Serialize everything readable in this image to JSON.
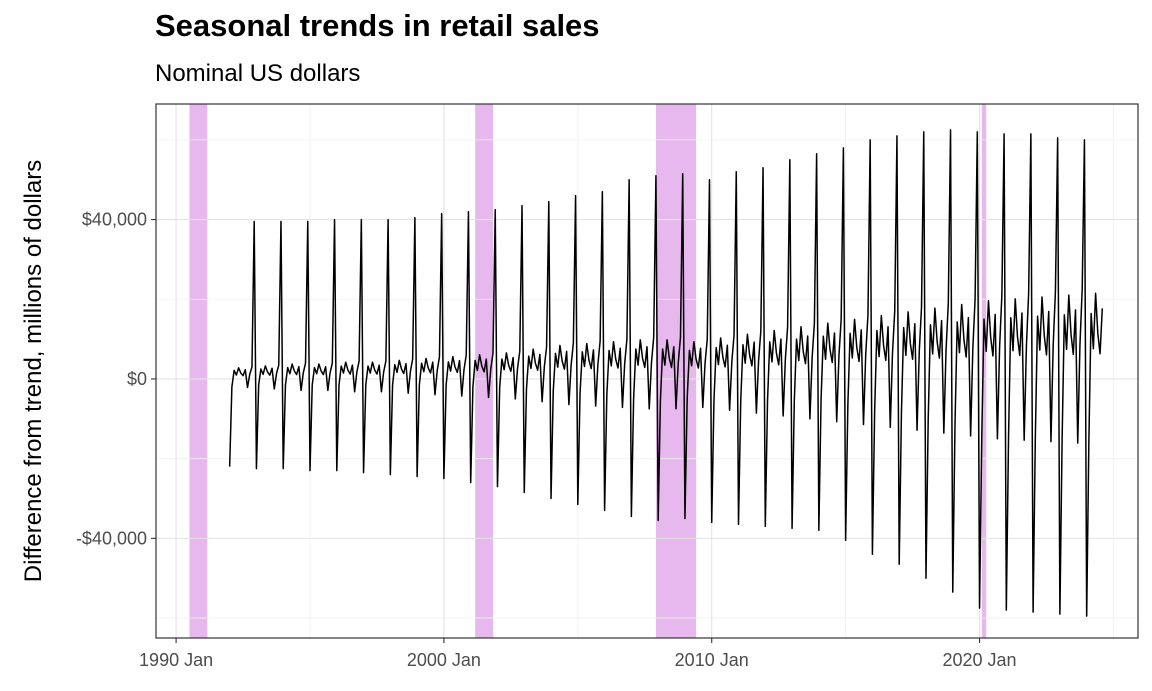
{
  "chart_data": {
    "type": "line",
    "title": "Seasonal trends in retail sales",
    "subtitle": "Nominal US dollars",
    "xlabel": "",
    "ylabel": "Difference from trend, millions of dollars",
    "x_ticks": [
      "1990 Jan",
      "2000 Jan",
      "2010 Jan",
      "2020 Jan"
    ],
    "y_ticks": [
      "$40,000",
      "$0",
      "-$40,000"
    ],
    "x_range": [
      "1989-04",
      "2025-12"
    ],
    "y_range": [
      -65000,
      69000
    ],
    "grid": true,
    "line_color": "#000000",
    "shade_color": "#e6b8ee",
    "recessions": [
      {
        "start": "1990-07",
        "end": "1991-03"
      },
      {
        "start": "2001-03",
        "end": "2001-11"
      },
      {
        "start": "2007-12",
        "end": "2009-06"
      },
      {
        "start": "2020-02",
        "end": "2020-04"
      }
    ],
    "series": [
      {
        "start": "1992-01",
        "end": "2024-08",
        "annual_peak_dec": [
          39500,
          39500,
          39500,
          40000,
          40000,
          40000,
          40500,
          41500,
          42000,
          42500,
          43500,
          44500,
          46000,
          47000,
          50000,
          51000,
          51500,
          50000,
          52000,
          53000,
          55000,
          56500,
          58000,
          60000,
          61000,
          62000,
          62500,
          62000,
          61500,
          61500,
          60500,
          60000,
          60000
        ],
        "annual_trough_jan": [
          -22000,
          -22500,
          -22500,
          -23000,
          -23000,
          -23500,
          -24000,
          -24500,
          -25000,
          -26000,
          -27000,
          -28500,
          -30000,
          -31500,
          -33000,
          -34500,
          -35500,
          -35000,
          -36000,
          -36500,
          -37000,
          -37500,
          -38000,
          -40500,
          -44000,
          -46500,
          -50000,
          -53500,
          -57500,
          -58000,
          -58500,
          -59000,
          -59500
        ],
        "annual_nov": [
          3000,
          3500,
          4000,
          4000,
          4500,
          4500,
          5000,
          5500,
          6000,
          6500,
          7000,
          8000,
          9000,
          9500,
          10000,
          10500,
          10500,
          10000,
          11000,
          12000,
          13000,
          14000,
          15000,
          16000,
          17000,
          18000,
          19000,
          20000,
          21000,
          21500,
          22000,
          22500,
          23000
        ],
        "annual_feb_offset": [
          20000,
          21000,
          21000,
          21500,
          21500,
          22000,
          22500,
          23000,
          23500,
          24000,
          25000,
          26000,
          27000,
          28000,
          29000,
          29500,
          30000,
          30000,
          30500,
          31000,
          31500,
          32000,
          33000,
          34000,
          36000,
          38000,
          40000,
          42000,
          43000,
          43500,
          44000,
          44000,
          44500
        ]
      }
    ]
  }
}
